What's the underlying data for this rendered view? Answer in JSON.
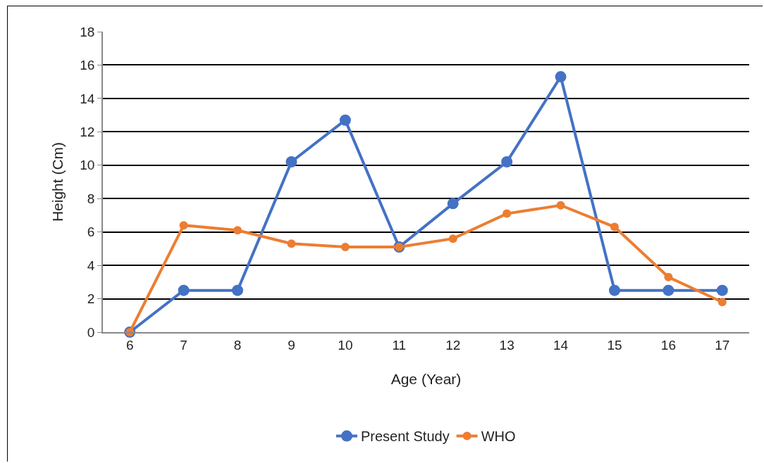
{
  "chart_data": {
    "type": "line",
    "xlabel": "Age (Year)",
    "ylabel": "Height (Cm)",
    "categories": [
      "6",
      "7",
      "8",
      "9",
      "10",
      "11",
      "12",
      "13",
      "14",
      "15",
      "16",
      "17"
    ],
    "series": [
      {
        "name": "Present Study",
        "color": "#4472c4",
        "values": [
          0,
          2.5,
          2.5,
          10.2,
          12.7,
          5.1,
          7.7,
          10.2,
          15.3,
          2.5,
          2.5,
          2.5
        ]
      },
      {
        "name": "WHO",
        "color": "#ed7d31",
        "values": [
          0,
          6.4,
          6.1,
          5.3,
          5.1,
          5.1,
          5.6,
          7.1,
          7.6,
          6.3,
          3.3,
          1.8
        ]
      }
    ],
    "ylim": [
      0,
      18
    ],
    "yticks": [
      0,
      2,
      4,
      6,
      8,
      10,
      12,
      14,
      16,
      18
    ],
    "grid": "y",
    "legend": "bottom",
    "marker": "circle",
    "line_style": "solid"
  }
}
